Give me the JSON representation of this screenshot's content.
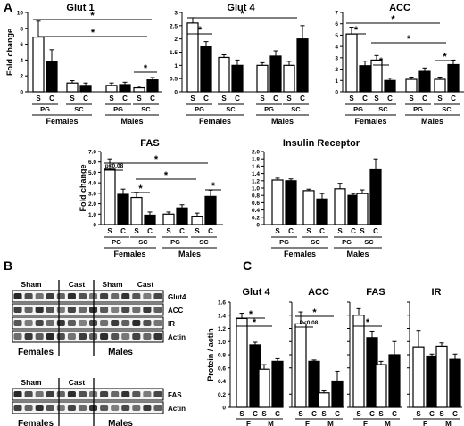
{
  "panel_letters": {
    "a": "A",
    "b": "B",
    "c": "C"
  },
  "colors": {
    "sham": "#ffffff",
    "cast": "#000000",
    "axis": "#000000"
  },
  "labels": {
    "fold_change": "Fold change",
    "protein_actin": "Protein / actin",
    "s": "S",
    "c": "C",
    "pg": "PG",
    "sc": "SC",
    "females": "Females",
    "males": "Males",
    "f": "F",
    "m": "M",
    "star": "*",
    "p_fas": "p<0.08",
    "p_acc": "P<0.08"
  },
  "blot": {
    "top": {
      "header": [
        "Sham",
        "Cast",
        "Sham",
        "Cast"
      ],
      "rows": [
        "Glut4",
        "ACC",
        "IR",
        "Actin"
      ],
      "groups": [
        "Females",
        "Males"
      ]
    },
    "bottom": {
      "header": [
        "Sham",
        "Cast"
      ],
      "rows": [
        "FAS",
        "Actin"
      ],
      "groups": [
        "Females",
        "Males"
      ]
    }
  },
  "chart_data": [
    {
      "type": "bar",
      "title": "Glut 1",
      "ylabel": "Fold change",
      "ylim": [
        0,
        10
      ],
      "ticks": [
        "0",
        "2",
        "4",
        "6",
        "8",
        "10"
      ],
      "groups": [
        "Females PG",
        "Females SC",
        "Males PG",
        "Males SC"
      ],
      "series": [
        {
          "name": "S",
          "values": [
            6.9,
            1.1,
            0.8,
            0.5
          ],
          "errors": [
            2.0,
            0.3,
            0.3,
            0.2
          ]
        },
        {
          "name": "C",
          "values": [
            3.8,
            0.8,
            0.9,
            1.5
          ],
          "errors": [
            1.5,
            0.3,
            0.3,
            0.3
          ]
        }
      ]
    },
    {
      "type": "bar",
      "title": "Glut 4",
      "ylim": [
        0,
        3
      ],
      "ticks": [
        "0",
        "0.5",
        "1",
        "1.5",
        "2",
        "2.5",
        "3"
      ],
      "groups": [
        "Females PG",
        "Females SC",
        "Males PG",
        "Males SC"
      ],
      "series": [
        {
          "name": "S",
          "values": [
            2.6,
            1.3,
            1.0,
            1.0
          ],
          "errors": [
            0.2,
            0.1,
            0.1,
            0.15
          ]
        },
        {
          "name": "C",
          "values": [
            1.7,
            1.0,
            1.35,
            2.0
          ],
          "errors": [
            0.2,
            0.2,
            0.2,
            0.5
          ]
        }
      ]
    },
    {
      "type": "bar",
      "title": "ACC",
      "ylim": [
        0,
        7
      ],
      "ticks": [
        "0",
        "1",
        "2",
        "3",
        "4",
        "5",
        "6",
        "7"
      ],
      "groups": [
        "Females PG",
        "Females SC",
        "Males PG",
        "Males SC"
      ],
      "series": [
        {
          "name": "S",
          "values": [
            5.1,
            2.8,
            1.1,
            1.1
          ],
          "errors": [
            0.6,
            0.4,
            0.2,
            0.2
          ]
        },
        {
          "name": "C",
          "values": [
            2.3,
            1.0,
            1.8,
            2.4
          ],
          "errors": [
            0.4,
            0.2,
            0.3,
            0.4
          ]
        }
      ]
    },
    {
      "type": "bar",
      "title": "FAS",
      "ylabel": "Fold change",
      "ylim": [
        0,
        7
      ],
      "ticks": [
        "0",
        "1.0",
        "2.0",
        "3.0",
        "4.0",
        "5.0",
        "6.0",
        "7.0"
      ],
      "groups": [
        "Females PG",
        "Females SC",
        "Males PG",
        "Males SC"
      ],
      "series": [
        {
          "name": "S",
          "values": [
            5.3,
            2.6,
            1.0,
            0.8
          ],
          "errors": [
            1.0,
            0.5,
            0.2,
            0.3
          ]
        },
        {
          "name": "C",
          "values": [
            2.9,
            0.9,
            1.6,
            2.7
          ],
          "errors": [
            0.5,
            0.3,
            0.3,
            0.6
          ]
        }
      ]
    },
    {
      "type": "bar",
      "title": "Insulin Receptor",
      "ylim": [
        0,
        2
      ],
      "ticks": [
        "0",
        "0.2",
        "0.4",
        "0.6",
        "0.8",
        "1.0",
        "1.2",
        "1.4",
        "1.6",
        "1.8",
        "2.0"
      ],
      "groups": [
        "Females PG",
        "Females SC",
        "Males PG",
        "Males SC"
      ],
      "series": [
        {
          "name": "S",
          "values": [
            1.22,
            0.93,
            0.98,
            0.85
          ],
          "errors": [
            0.05,
            0.04,
            0.15,
            0.1
          ]
        },
        {
          "name": "C",
          "values": [
            1.2,
            0.7,
            0.8,
            1.5
          ],
          "errors": [
            0.05,
            0.15,
            0.05,
            0.3
          ]
        }
      ]
    },
    {
      "type": "bar",
      "title": "Glut 4",
      "ylabel": "Protein / actin",
      "ylim": [
        0,
        1.6
      ],
      "ticks": [
        "0",
        "0.2",
        "0.4",
        "0.6",
        "0.8",
        "1.0",
        "1.2",
        "1.4",
        "1.6"
      ],
      "groups": [
        "F",
        "M"
      ],
      "series": [
        {
          "name": "S",
          "values": [
            1.35,
            0.58
          ],
          "errors": [
            0.08,
            0.07
          ]
        },
        {
          "name": "C",
          "values": [
            0.95,
            0.7
          ],
          "errors": [
            0.04,
            0.04
          ]
        }
      ]
    },
    {
      "type": "bar",
      "title": "ACC",
      "ylim": [
        0,
        1.6
      ],
      "groups": [
        "F",
        "M"
      ],
      "series": [
        {
          "name": "S",
          "values": [
            1.27,
            0.22
          ],
          "errors": [
            0.18,
            0.03
          ]
        },
        {
          "name": "C",
          "values": [
            0.7,
            0.4
          ],
          "errors": [
            0.02,
            0.15
          ]
        }
      ]
    },
    {
      "type": "bar",
      "title": "FAS",
      "ylim": [
        0,
        1.6
      ],
      "groups": [
        "F",
        "M"
      ],
      "series": [
        {
          "name": "S",
          "values": [
            1.4,
            0.65
          ],
          "errors": [
            0.1,
            0.05
          ]
        },
        {
          "name": "C",
          "values": [
            1.06,
            0.8
          ],
          "errors": [
            0.1,
            0.2
          ]
        }
      ]
    },
    {
      "type": "bar",
      "title": "IR",
      "ylim": [
        0,
        1.6
      ],
      "groups": [
        "F",
        "M"
      ],
      "series": [
        {
          "name": "S",
          "values": [
            0.92,
            0.93
          ],
          "errors": [
            0.25,
            0.05
          ]
        },
        {
          "name": "C",
          "values": [
            0.78,
            0.73
          ],
          "errors": [
            0.03,
            0.08
          ]
        }
      ]
    }
  ]
}
